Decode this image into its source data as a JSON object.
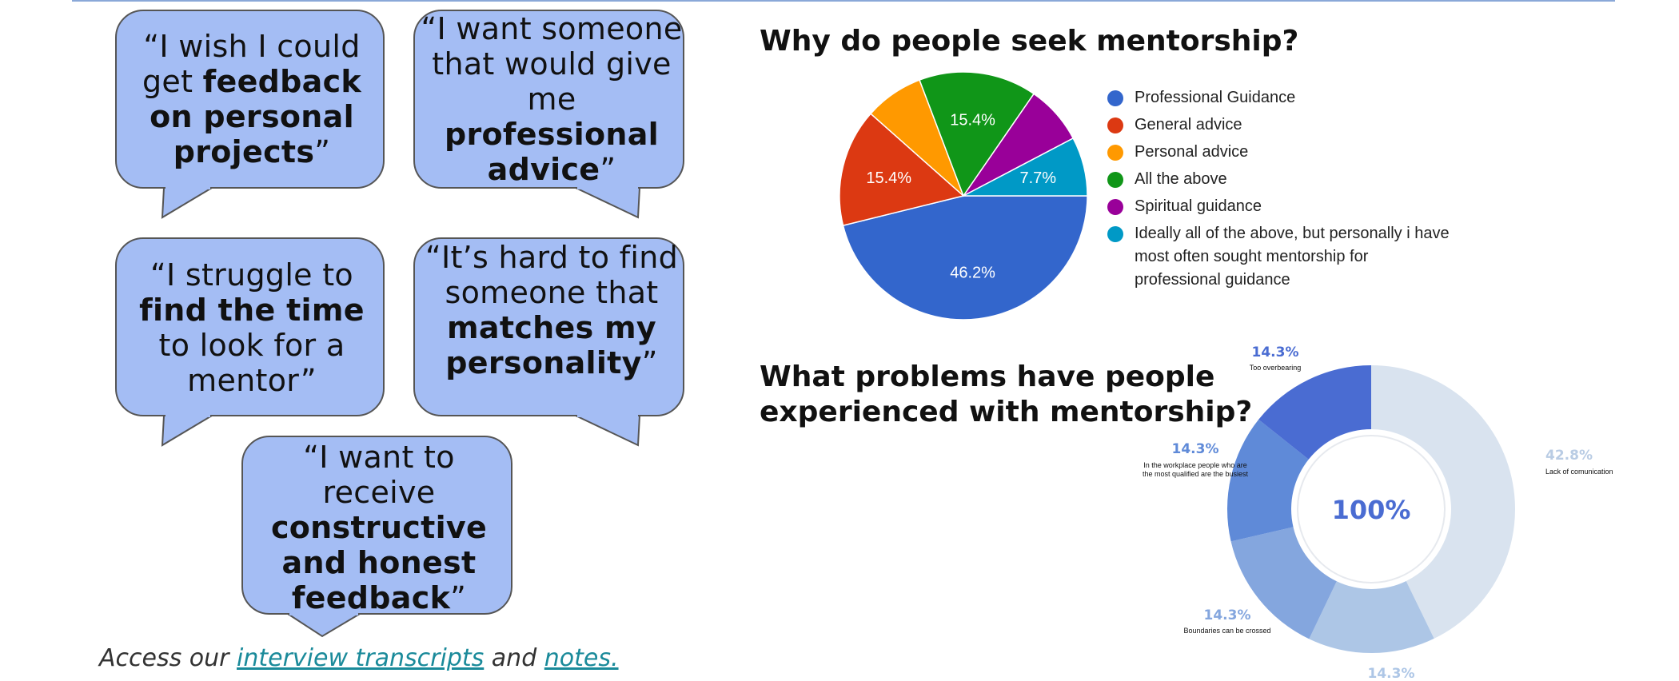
{
  "quotes": [
    {
      "segments": [
        {
          "t": "“I wish I could get ",
          "b": false
        },
        {
          "t": "feedback on personal projects",
          "b": true
        },
        {
          "t": "”",
          "b": false
        }
      ]
    },
    {
      "segments": [
        {
          "t": "“I want someone that would give me ",
          "b": false
        },
        {
          "t": "professional advice",
          "b": true
        },
        {
          "t": "”",
          "b": false
        }
      ]
    },
    {
      "segments": [
        {
          "t": "“I struggle to ",
          "b": false
        },
        {
          "t": "find the time",
          "b": true
        },
        {
          "t": " to look for a mentor”",
          "b": false
        }
      ]
    },
    {
      "segments": [
        {
          "t": "“It’s hard to find someone that ",
          "b": false
        },
        {
          "t": "matches my personality",
          "b": true
        },
        {
          "t": "”",
          "b": false
        }
      ]
    },
    {
      "segments": [
        {
          "t": "“I want to receive ",
          "b": false
        },
        {
          "t": "constructive and honest feedback",
          "b": true
        },
        {
          "t": "”",
          "b": false
        }
      ]
    }
  ],
  "footer": {
    "prefix": "Access our ",
    "link1": "interview transcripts",
    "middle": " and ",
    "link2": "notes."
  },
  "colors": {
    "bubble_fill": "#a4bdf4",
    "bubble_stroke": "#555555",
    "link": "#1a8a9a"
  },
  "chart_data": [
    {
      "type": "pie",
      "title": "Why do people seek mentorship?",
      "legend_position": "right",
      "slices": [
        {
          "label": "Professional Guidance",
          "value": 46.2,
          "data_label": "46.2%",
          "color": "#3366cc"
        },
        {
          "label": "General advice",
          "value": 15.4,
          "data_label": "15.4%",
          "color": "#dc3912"
        },
        {
          "label": "Personal advice",
          "value": 7.7,
          "data_label": "",
          "color": "#ff9900"
        },
        {
          "label": "All the above",
          "value": 15.4,
          "data_label": "15.4%",
          "color": "#109618"
        },
        {
          "label": "Spiritual guidance",
          "value": 7.7,
          "data_label": "",
          "color": "#990099"
        },
        {
          "label": "Ideally all of the above, but personally i have most often sought mentorship for professional guidance",
          "value": 7.7,
          "data_label": "7.7%",
          "color": "#0099c6"
        }
      ]
    },
    {
      "type": "pie",
      "subtype": "donut",
      "title": "What problems have people experienced with mentorship?",
      "center_label": "100%",
      "slices": [
        {
          "label": "Lack of comunication",
          "value": 42.8,
          "data_label": "42.8%",
          "color": "#d9e3ef"
        },
        {
          "label": "",
          "value": 14.3,
          "data_label": "14.3%",
          "color": "#adc6e6"
        },
        {
          "label": "Boundaries can be crossed",
          "value": 14.3,
          "data_label": "14.3%",
          "color": "#84a6de"
        },
        {
          "label": "In the workplace people who are the most qualified are the busiest",
          "value": 14.3,
          "data_label": "14.3%",
          "color": "#5f8ad8"
        },
        {
          "label": "Too overbearing",
          "value": 14.3,
          "data_label": "14.3%",
          "color": "#4a6cd2"
        }
      ]
    }
  ]
}
